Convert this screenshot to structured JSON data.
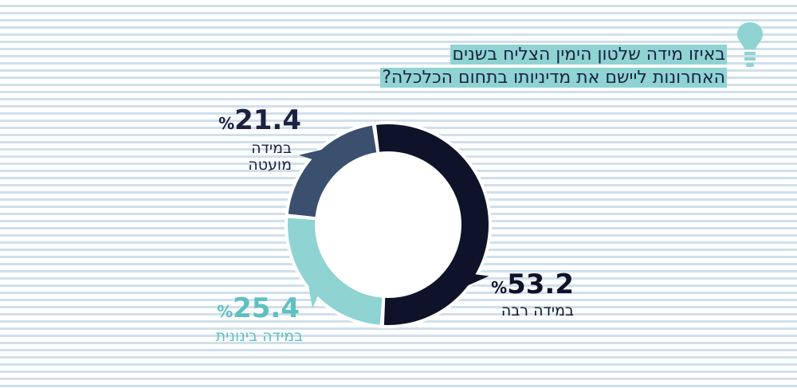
{
  "title": {
    "line1": "באיזו מידה שלטון הימין הצליח בשנים",
    "line2": "האחרונות ליישם את מדיניותו בתחום הכלכלה?"
  },
  "icon": "lightbulb-icon",
  "chart_data": {
    "type": "pie",
    "donut": true,
    "title": "באיזו מידה שלטון הימין הצליח בשנים האחרונות ליישם את מדיניותו בתחום הכלכלה?",
    "unit": "%",
    "slices": [
      {
        "label": "במידה רבה",
        "value": 53.2,
        "value_text": "53.2",
        "color": "#0e1329"
      },
      {
        "label": "במידה בינונית",
        "value": 25.4,
        "value_text": "25.4",
        "color": "#8fd3d3"
      },
      {
        "label": "במידה מועטה",
        "value": 21.4,
        "value_text": "21.4",
        "color": "#3b4f6e"
      }
    ],
    "labels_extra": {
      "small_line1": "במידה",
      "small_line2": "מועטה"
    }
  }
}
